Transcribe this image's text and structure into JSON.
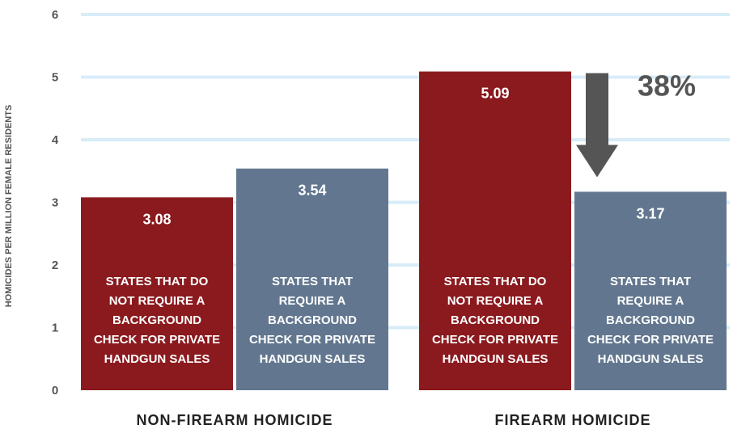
{
  "chart_data": {
    "type": "bar",
    "ylabel": "HOMICIDES PER MILLION FEMALE RESIDENTS",
    "ylim": [
      0,
      6
    ],
    "yticks": [
      "0",
      "1",
      "2",
      "3",
      "4",
      "5",
      "6"
    ],
    "grid": true,
    "categories": [
      "NON-FIREARM HOMICIDE",
      "FIREARM HOMICIDE"
    ],
    "series": [
      {
        "name": "STATES THAT DO NOT REQUIRE A BACKGROUND CHECK FOR PRIVATE HANDGUN SALES",
        "label_lines": [
          "STATES THAT DO",
          "NOT REQUIRE A",
          "BACKGROUND",
          "CHECK FOR PRIVATE",
          "HANDGUN SALES"
        ],
        "values": [
          3.08,
          5.09
        ],
        "value_labels": [
          "3.08",
          "5.09"
        ],
        "color": "#8b1a1e"
      },
      {
        "name": "STATES THAT REQUIRE A BACKGROUND CHECK FOR PRIVATE HANDGUN SALES",
        "label_lines": [
          "STATES THAT",
          "REQUIRE A",
          "BACKGROUND",
          "CHECK FOR PRIVATE",
          "HANDGUN SALES"
        ],
        "values": [
          3.54,
          3.17
        ],
        "value_labels": [
          "3.54",
          "3.17"
        ],
        "color": "#62778f"
      }
    ],
    "annotation": {
      "text": "38%",
      "category": "FIREARM HOMICIDE",
      "arrow": "down",
      "color": "#555555"
    },
    "gridline_color": "#d8ecf8"
  }
}
